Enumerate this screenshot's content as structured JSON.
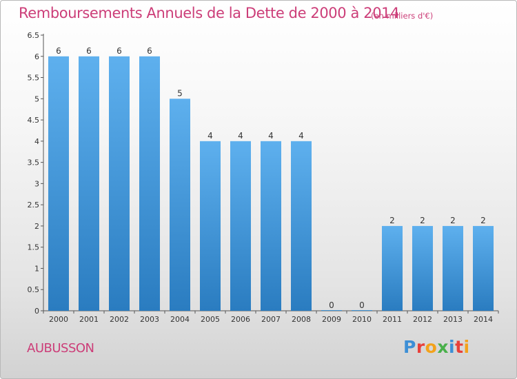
{
  "title": "Remboursements Annuels de la Dette de 2000 à 2014",
  "unit_note": "(en milliers d'€)",
  "commune": "AUBUSSON",
  "logo": {
    "letters": [
      "P",
      "r",
      "o",
      "x",
      "i",
      "t",
      "i"
    ],
    "colors": [
      "#3d8fd6",
      "#e8403a",
      "#f3a21b",
      "#49b04a",
      "#3d8fd6",
      "#e8403a",
      "#f3a21b"
    ]
  },
  "colors": {
    "title": "#cc3d78",
    "bar_top": "#5eb0ee",
    "bar_bottom": "#2a7cc0",
    "axis_text": "#333333"
  },
  "chart_data": {
    "type": "bar",
    "title": "Remboursements Annuels de la Dette de 2000 à 2014",
    "xlabel": "",
    "ylabel": "",
    "categories": [
      "2000",
      "2001",
      "2002",
      "2003",
      "2004",
      "2005",
      "2006",
      "2007",
      "2008",
      "2009",
      "2010",
      "2011",
      "2012",
      "2013",
      "2014"
    ],
    "values": [
      6,
      6,
      6,
      6,
      5,
      4,
      4,
      4,
      4,
      0,
      0,
      2,
      2,
      2,
      2
    ],
    "data_labels": [
      "6",
      "6",
      "6",
      "6",
      "5",
      "4",
      "4",
      "4",
      "4",
      "0",
      "0",
      "2",
      "2",
      "2",
      "2"
    ],
    "ylim": [
      0,
      6.5
    ],
    "yticks": [
      0,
      0.5,
      1,
      1.5,
      2,
      2.5,
      3,
      3.5,
      4,
      4.5,
      5,
      5.5,
      6,
      6.5
    ],
    "ytick_labels": [
      "0",
      "0.5",
      "1",
      "1.5",
      "2",
      "2.5",
      "3",
      "3.5",
      "4",
      "4.5",
      "5",
      "5.5",
      "6",
      "6.5"
    ],
    "grid": false,
    "legend": "none"
  }
}
